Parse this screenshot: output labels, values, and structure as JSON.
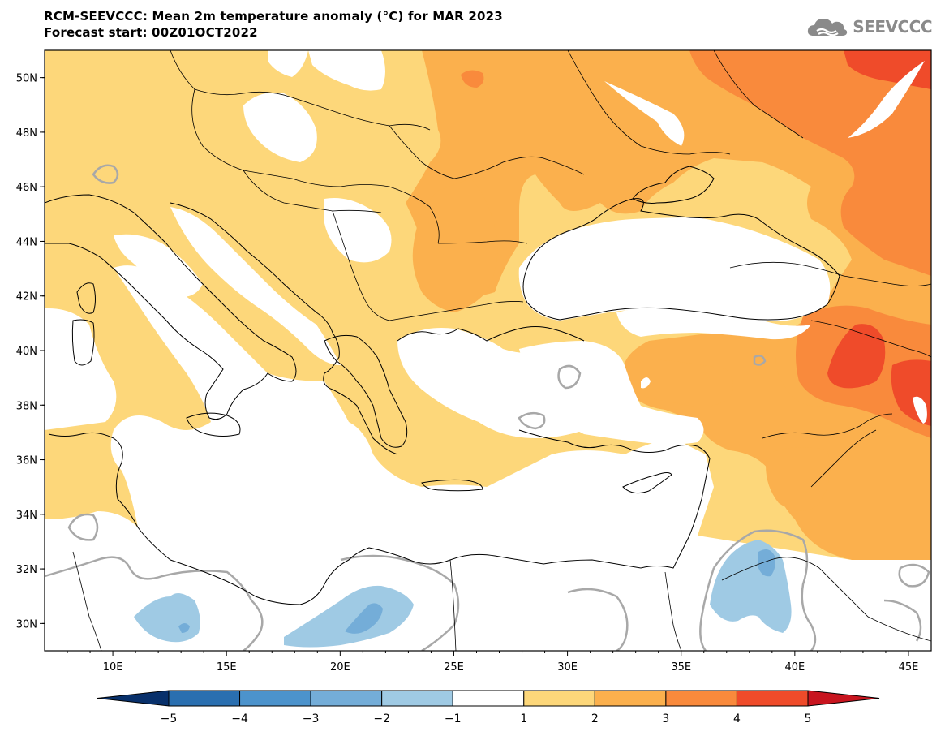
{
  "header": {
    "title_line1": "RCM-SEEVCCC: Mean 2m temperature anomaly (°C) for MAR 2023",
    "title_line2": "Forecast start: 00Z01OCT2022"
  },
  "logo": {
    "text": "SEEVCCC",
    "icon": "cloud-icon",
    "color": "#8a8a8a"
  },
  "map": {
    "lon_range": [
      7,
      46
    ],
    "lat_range": [
      29,
      51
    ],
    "lat_ticks": [
      "30N",
      "32N",
      "34N",
      "36N",
      "38N",
      "40N",
      "42N",
      "44N",
      "46N",
      "48N",
      "50N"
    ],
    "lon_ticks": [
      "10E",
      "15E",
      "20E",
      "25E",
      "30E",
      "35E",
      "40E",
      "45E"
    ]
  },
  "colorbar": {
    "labels": [
      "−5",
      "−4",
      "−3",
      "−2",
      "−1",
      "1",
      "2",
      "3",
      "4",
      "5"
    ],
    "colors": [
      "#08306b",
      "#2a6fb0",
      "#4c93cc",
      "#74add8",
      "#9fcae4",
      "#ffffff",
      "#fdd77a",
      "#fbb04d",
      "#f98a3c",
      "#ef4b2a",
      "#c8151f"
    ]
  },
  "palette": {
    "a1": "#fdd77a",
    "a2": "#fbb04d",
    "a3": "#f98a3c",
    "a4": "#ef4b2a",
    "n1": "#9fcae4",
    "n2": "#74add8",
    "coast": "#000000",
    "contour": "#a8a8a8"
  }
}
